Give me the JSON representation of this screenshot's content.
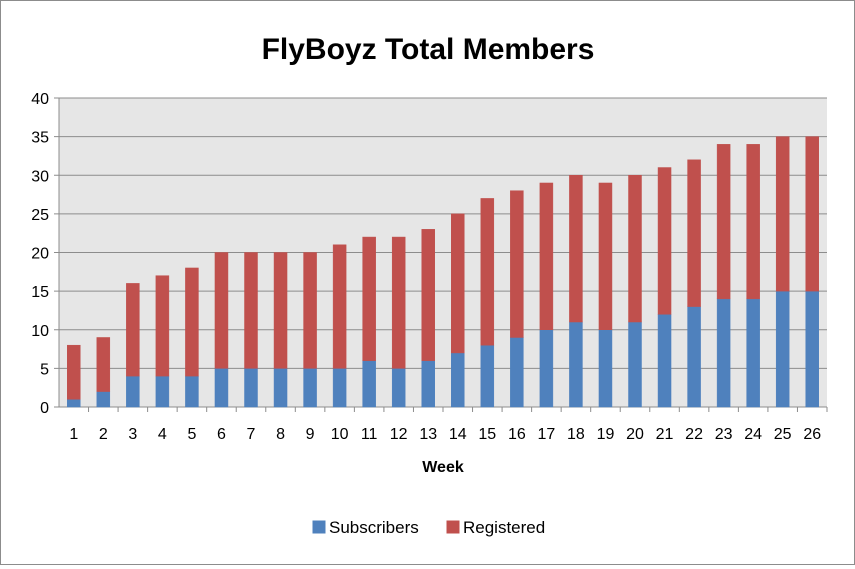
{
  "chart_data": {
    "type": "bar",
    "stacked": true,
    "title": "FlyBoyz Total Members",
    "xlabel": "Week",
    "ylabel": "",
    "ylim": [
      0,
      40
    ],
    "yticks": [
      "0",
      "5",
      "10",
      "15",
      "20",
      "25",
      "30",
      "35",
      "40"
    ],
    "grid": true,
    "legend_position": "bottom",
    "categories": [
      "1",
      "2",
      "3",
      "4",
      "5",
      "6",
      "7",
      "8",
      "9",
      "10",
      "11",
      "12",
      "13",
      "14",
      "15",
      "16",
      "17",
      "18",
      "19",
      "20",
      "21",
      "22",
      "23",
      "24",
      "25",
      "26"
    ],
    "series": [
      {
        "name": "Subscribers",
        "color": "#4f81bd",
        "values": [
          1,
          2,
          4,
          4,
          4,
          5,
          5,
          5,
          5,
          5,
          6,
          5,
          6,
          7,
          8,
          9,
          10,
          11,
          10,
          11,
          12,
          13,
          14,
          14,
          15,
          15
        ]
      },
      {
        "name": "Registered",
        "color": "#c0504d",
        "values": [
          7,
          7,
          12,
          13,
          14,
          15,
          15,
          15,
          15,
          16,
          16,
          17,
          17,
          18,
          19,
          19,
          19,
          19,
          19,
          19,
          19,
          19,
          20,
          20,
          20,
          20
        ]
      }
    ],
    "plot_background": "#e6e6e6"
  }
}
